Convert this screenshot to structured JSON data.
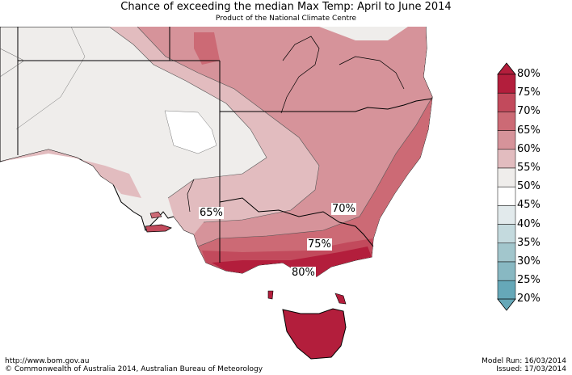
{
  "header": {
    "title": "Chance of exceeding the median Max Temp: April to June 2014",
    "subtitle": "Product of the National Climate Centre"
  },
  "map": {
    "contour_labels": [
      "65%",
      "70%",
      "75%",
      "80%"
    ]
  },
  "legend": {
    "labels": [
      "80%",
      "75%",
      "70%",
      "65%",
      "60%",
      "55%",
      "50%",
      "45%",
      "40%",
      "35%",
      "30%",
      "25%",
      "20%"
    ],
    "colors": [
      "#b31e3c",
      "#c24a5c",
      "#cc6a75",
      "#d6939a",
      "#e2bcbf",
      "#efedeb",
      "#ffffff",
      "#ffffff",
      "#e2eaec",
      "#c4dade",
      "#a2c6cc",
      "#88b8c2",
      "#66a8b8"
    ]
  },
  "footer": {
    "url": "http://www.bom.gov.au",
    "copyright": "©  Commonwealth of Australia 2014, Australian Bureau of Meteorology",
    "model_run": "Model Run: 16/03/2014",
    "issued": "Issued: 17/03/2014"
  }
}
